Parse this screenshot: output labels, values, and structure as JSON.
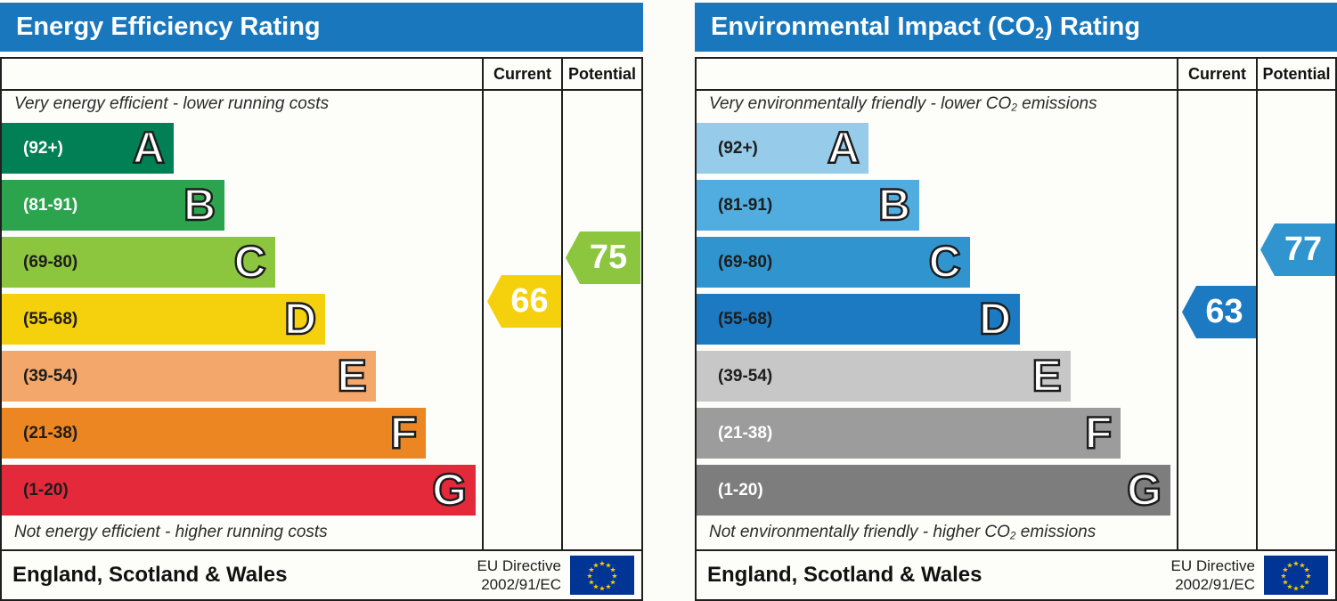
{
  "chart_data": [
    {
      "type": "bar",
      "title": "Energy Efficiency Rating",
      "categories": [
        "A (92+)",
        "B (81-91)",
        "C (69-80)",
        "D (55-68)",
        "E (39-54)",
        "F (21-38)",
        "G (1-20)"
      ],
      "series": [
        {
          "name": "Current",
          "values": [
            66
          ]
        },
        {
          "name": "Potential",
          "values": [
            75
          ]
        }
      ],
      "current": 66,
      "current_band": "D",
      "potential": 75,
      "potential_band": "C",
      "scale_min": 1,
      "scale_max": 100,
      "band_colors": [
        "#008054",
        "#2ca44e",
        "#8cc63e",
        "#f5d00d",
        "#f3a76a",
        "#ec8622",
        "#e4293a"
      ],
      "annotations": [
        "Very energy efficient - lower running costs",
        "Not energy efficient - higher running costs",
        "England, Scotland & Wales",
        "EU Directive 2002/91/EC"
      ]
    },
    {
      "type": "bar",
      "title": "Environmental Impact (CO2) Rating",
      "categories": [
        "A (92+)",
        "B (81-91)",
        "C (69-80)",
        "D (55-68)",
        "E (39-54)",
        "F (21-38)",
        "G (1-20)"
      ],
      "series": [
        {
          "name": "Current",
          "values": [
            63
          ]
        },
        {
          "name": "Potential",
          "values": [
            77
          ]
        }
      ],
      "current": 63,
      "current_band": "D",
      "potential": 77,
      "potential_band": "C",
      "scale_min": 1,
      "scale_max": 100,
      "band_colors": [
        "#96cbe9",
        "#51ade0",
        "#3095cf",
        "#1b7ac2",
        "#c7c7c7",
        "#9c9c9c",
        "#7d7d7d"
      ],
      "annotations": [
        "Very environmentally friendly - lower CO2 emissions",
        "Not environmentally friendly - higher CO2 emissions",
        "England, Scotland & Wales",
        "EU Directive 2002/91/EC"
      ]
    }
  ],
  "panels": [
    {
      "title": {
        "pre": "Energy Efficiency Rating",
        "sub": "",
        "post": ""
      },
      "col_current": "Current",
      "col_potential": "Potential",
      "top_note": {
        "pre": "Very energy efficient - lower running costs",
        "sub": "",
        "post": ""
      },
      "bottom_note": {
        "pre": "Not energy efficient - higher running costs",
        "sub": "",
        "post": ""
      },
      "bands": [
        {
          "grade": "A",
          "range": "(92+)",
          "low": 92,
          "high": 100,
          "color": "#008054",
          "text_color": "#ffffff",
          "width_pct": 35.8
        },
        {
          "grade": "B",
          "range": "(81-91)",
          "low": 81,
          "high": 91,
          "color": "#2ca44e",
          "text_color": "#ffffff",
          "width_pct": 46.4
        },
        {
          "grade": "C",
          "range": "(69-80)",
          "low": 69,
          "high": 80,
          "color": "#8cc63e",
          "text_color": "#1d1d1d",
          "width_pct": 56.9
        },
        {
          "grade": "D",
          "range": "(55-68)",
          "low": 55,
          "high": 68,
          "color": "#f5d00d",
          "text_color": "#1d1d1d",
          "width_pct": 67.4
        },
        {
          "grade": "E",
          "range": "(39-54)",
          "low": 39,
          "high": 54,
          "color": "#f3a76a",
          "text_color": "#1d1d1d",
          "width_pct": 77.9
        },
        {
          "grade": "F",
          "range": "(21-38)",
          "low": 21,
          "high": 38,
          "color": "#ec8622",
          "text_color": "#1d1d1d",
          "width_pct": 88.4
        },
        {
          "grade": "G",
          "range": "(1-20)",
          "low": 1,
          "high": 20,
          "color": "#e4293a",
          "text_color": "#1d1d1d",
          "width_pct": 98.7
        }
      ],
      "current": {
        "label": "66",
        "value": 66,
        "color": "#f5d00d"
      },
      "potential": {
        "label": "75",
        "value": 75,
        "color": "#8cc63e"
      },
      "footer_region": "England, Scotland & Wales",
      "footer_directive_line1": "EU Directive",
      "footer_directive_line2": "2002/91/EC"
    },
    {
      "title": {
        "pre": "Environmental Impact (CO",
        "sub": "2",
        "post": ") Rating"
      },
      "col_current": "Current",
      "col_potential": "Potential",
      "top_note": {
        "pre": "Very environmentally friendly - lower CO",
        "sub": "2",
        "post": " emissions"
      },
      "bottom_note": {
        "pre": "Not environmentally friendly - higher CO",
        "sub": "2",
        "post": " emissions"
      },
      "bands": [
        {
          "grade": "A",
          "range": "(92+)",
          "low": 92,
          "high": 100,
          "color": "#96cbe9",
          "text_color": "#1d1d1d",
          "width_pct": 35.8
        },
        {
          "grade": "B",
          "range": "(81-91)",
          "low": 81,
          "high": 91,
          "color": "#51ade0",
          "text_color": "#1d1d1d",
          "width_pct": 46.4
        },
        {
          "grade": "C",
          "range": "(69-80)",
          "low": 69,
          "high": 80,
          "color": "#3095cf",
          "text_color": "#1d1d1d",
          "width_pct": 56.9
        },
        {
          "grade": "D",
          "range": "(55-68)",
          "low": 55,
          "high": 68,
          "color": "#1b7ac2",
          "text_color": "#1d1d1d",
          "width_pct": 67.4
        },
        {
          "grade": "E",
          "range": "(39-54)",
          "low": 39,
          "high": 54,
          "color": "#c7c7c7",
          "text_color": "#1d1d1d",
          "width_pct": 77.9
        },
        {
          "grade": "F",
          "range": "(21-38)",
          "low": 21,
          "high": 38,
          "color": "#9c9c9c",
          "text_color": "#ffffff",
          "width_pct": 88.4
        },
        {
          "grade": "G",
          "range": "(1-20)",
          "low": 1,
          "high": 20,
          "color": "#7d7d7d",
          "text_color": "#ffffff",
          "width_pct": 98.7
        }
      ],
      "current": {
        "label": "63",
        "value": 63,
        "color": "#1b7ac2"
      },
      "potential": {
        "label": "77",
        "value": 77,
        "color": "#3095cf"
      },
      "footer_region": "England, Scotland & Wales",
      "footer_directive_line1": "EU Directive",
      "footer_directive_line2": "2002/91/EC"
    }
  ],
  "colors": {
    "header_blue": "#1877bd",
    "border": "#1f1f1f",
    "eu_flag_blue": "#003595",
    "eu_star_gold": "#ffcc00"
  }
}
